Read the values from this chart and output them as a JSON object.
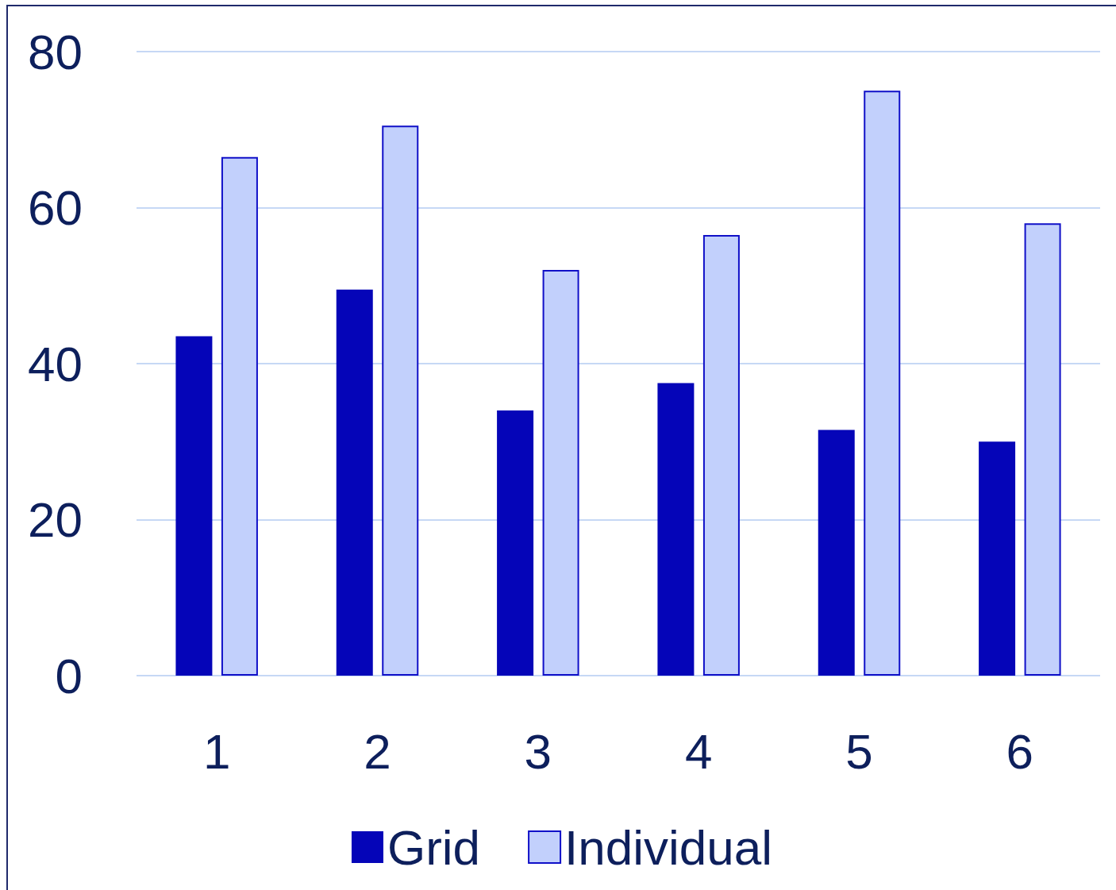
{
  "chart_data": {
    "type": "bar",
    "categories": [
      "1",
      "2",
      "3",
      "4",
      "5",
      "6"
    ],
    "series": [
      {
        "name": "Grid",
        "color": "#0505b8",
        "values": [
          43.5,
          49.5,
          34,
          37.5,
          31.5,
          30
        ]
      },
      {
        "name": "Individual",
        "color": "#c2d0fc",
        "values": [
          66.5,
          70.5,
          52,
          56.5,
          75,
          58
        ]
      }
    ],
    "ylim": [
      0,
      80
    ],
    "yticks": [
      0,
      20,
      40,
      60,
      80
    ],
    "grid": "y",
    "legend": "bottom"
  }
}
